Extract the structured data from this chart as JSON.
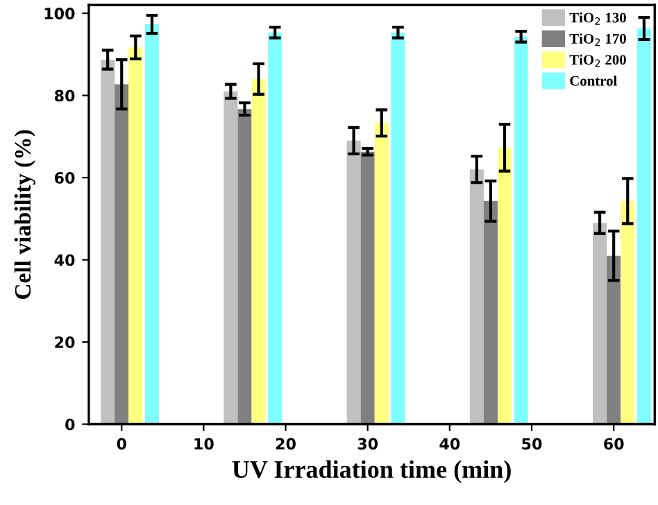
{
  "chart_data": {
    "type": "bar",
    "xlabel": "UV Irradiation time (min)",
    "ylabel": "Cell viability (%)",
    "series": [
      {
        "name": "TiO$_{2}$ 130",
        "color": "#c0c0c0",
        "x": [
          -1.7,
          13.3,
          28.3,
          43.3,
          58.3
        ],
        "values": [
          88.7,
          81,
          69,
          62,
          49
        ],
        "errors": [
          2.3,
          1.7,
          3.2,
          3.2,
          2.6
        ]
      },
      {
        "name": "TiO$_{2}$ 170",
        "color": "#808080",
        "x": [
          0,
          15,
          30,
          45,
          60
        ],
        "values": [
          82.7,
          76.7,
          66.3,
          54.3,
          41
        ],
        "errors": [
          6,
          1.5,
          0.8,
          4.9,
          6
        ]
      },
      {
        "name": "TiO$_{2}$ 200",
        "color": "#ffff80",
        "x": [
          1.7,
          16.7,
          31.7,
          46.7,
          61.7
        ],
        "values": [
          91.7,
          84,
          73.3,
          67.3,
          54.3
        ],
        "errors": [
          2.8,
          3.7,
          3.2,
          5.7,
          5.5
        ]
      },
      {
        "name": "Control",
        "color": "#80ffff",
        "x": [
          3.7,
          18.7,
          33.7,
          48.7,
          63.7
        ],
        "values": [
          97.3,
          95.3,
          95.3,
          94.3,
          96.3
        ],
        "errors": [
          2.2,
          1.3,
          1.3,
          1.3,
          2.7
        ]
      }
    ],
    "xlim": [
      -4,
      65
    ],
    "xticks": [
      0,
      10,
      20,
      30,
      40,
      50,
      60
    ],
    "ylim": [
      0,
      102
    ],
    "yticks": [
      0,
      20,
      40,
      60,
      80,
      100
    ],
    "grid": false,
    "legend": "top right"
  }
}
